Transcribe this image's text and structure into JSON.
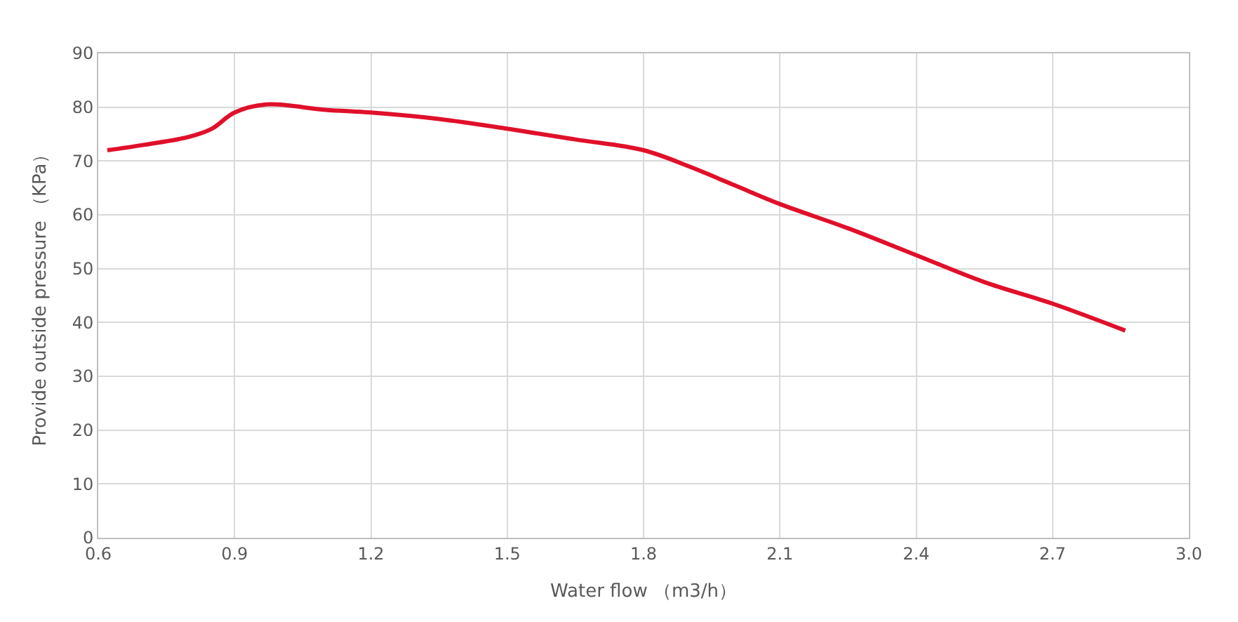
{
  "chart_data": {
    "type": "line",
    "xlabel": "Water flow （m3/h）",
    "ylabel": "Provide outside pressure （KPa）",
    "x": [
      0.62,
      0.7,
      0.8,
      0.85,
      0.9,
      0.97,
      1.1,
      1.2,
      1.35,
      1.5,
      1.65,
      1.8,
      1.9,
      2.0,
      2.1,
      2.25,
      2.4,
      2.55,
      2.7,
      2.86
    ],
    "series": [
      {
        "color": "#e0102a",
        "values": [
          72,
          73,
          74.5,
          76,
          79,
          80.5,
          79.5,
          79,
          77.8,
          76,
          74,
          72,
          69,
          65.5,
          62,
          57.5,
          52.5,
          47.5,
          43.5,
          38.5
        ]
      }
    ],
    "xlim": [
      0.6,
      3.0
    ],
    "xticks": [
      {
        "value": 0.6,
        "label": "0.6"
      },
      {
        "value": 0.9,
        "label": "0.9"
      },
      {
        "value": 1.2,
        "label": "1.2"
      },
      {
        "value": 1.5,
        "label": "1.5"
      },
      {
        "value": 1.8,
        "label": "1.8"
      },
      {
        "value": 2.1,
        "label": "2.1"
      },
      {
        "value": 2.4,
        "label": "2.4"
      },
      {
        "value": 2.7,
        "label": "2.7"
      },
      {
        "value": 3.0,
        "label": "3.0"
      }
    ],
    "ylim": [
      0,
      90
    ],
    "yticks": [
      0,
      10,
      20,
      30,
      40,
      50,
      60,
      70,
      80,
      90
    ],
    "grid": true,
    "marker": "none",
    "line_style": "solid"
  }
}
